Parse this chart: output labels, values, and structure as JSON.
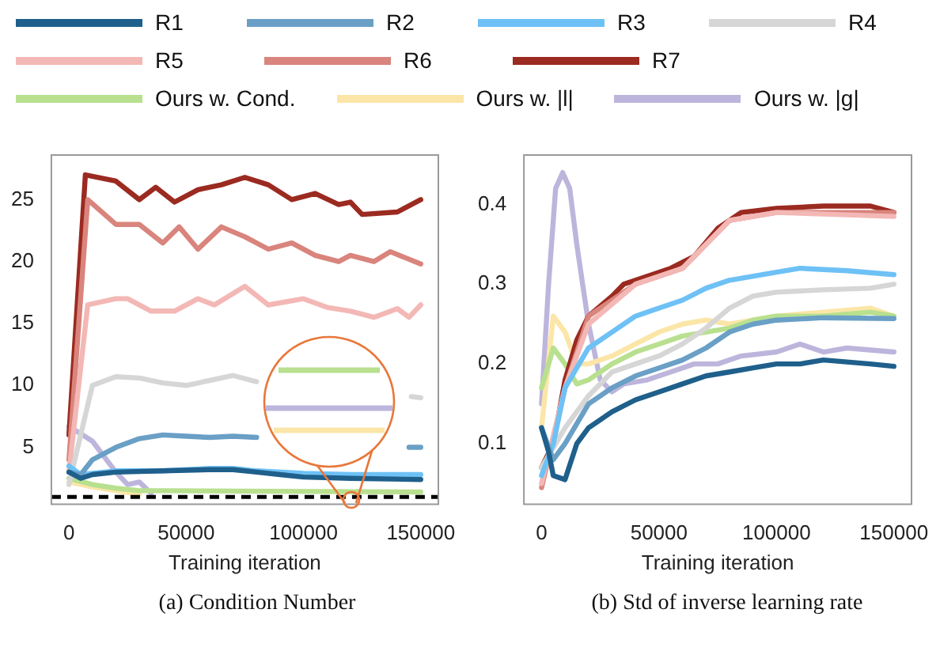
{
  "chart_data": [
    {
      "type": "line",
      "title": "(a) Condition Number",
      "xlabel": "Training iteration",
      "xlim": [
        -7500,
        157500
      ],
      "xticks": [
        0,
        50000,
        100000,
        150000
      ],
      "ylim": [
        0.4,
        28.6
      ],
      "yticks": [
        5,
        10,
        15,
        20,
        25
      ],
      "grid": false,
      "legend": "top",
      "marker": "none",
      "line_style": "solid",
      "ref_lines": [
        {
          "axis": "y",
          "value": 1,
          "color": "#000000",
          "line_style": "dashed"
        }
      ],
      "series": [
        {
          "name": "R1",
          "color": "#1f5f8b",
          "x": [
            0,
            5000,
            10000,
            20000,
            40000,
            60000,
            70000,
            80000,
            90000,
            100000,
            120000,
            150000
          ],
          "values": [
            3,
            2.5,
            2.8,
            3,
            3.1,
            3.2,
            3.2,
            3,
            2.8,
            2.6,
            2.5,
            2.4
          ]
        },
        {
          "name": "R2",
          "color": "#6a9fc6",
          "x": [
            0,
            5000,
            10000,
            20000,
            30000,
            40000,
            50000,
            60000,
            70000,
            80000,
            90000,
            100000,
            110000,
            120000,
            130000,
            145000,
            150000
          ],
          "values": [
            3,
            2.8,
            4,
            5,
            5.7,
            6,
            5.9,
            5.8,
            5.9,
            5.8,
            null,
            null,
            null,
            null,
            null,
            5,
            5
          ]
        },
        {
          "name": "R3",
          "color": "#6ec1f5",
          "x": [
            0,
            5000,
            10000,
            20000,
            40000,
            60000,
            70000,
            80000,
            100000,
            120000,
            150000
          ],
          "values": [
            3.5,
            2.8,
            2.9,
            3.1,
            3.1,
            3.3,
            3.3,
            3.1,
            2.9,
            2.8,
            2.8
          ]
        },
        {
          "name": "R4",
          "color": "#d6d6d6",
          "x": [
            0,
            10000,
            20000,
            30000,
            40000,
            50000,
            60000,
            70000,
            80000,
            90000,
            100000,
            110000,
            120000,
            130000,
            146000,
            150000
          ],
          "values": [
            2,
            10,
            10.7,
            10.6,
            10.2,
            10,
            10.4,
            10.8,
            10.3,
            null,
            null,
            null,
            null,
            null,
            9.1,
            9
          ]
        },
        {
          "name": "R5",
          "color": "#f3b8b5",
          "x": [
            0,
            8000,
            20000,
            25000,
            35000,
            45000,
            55000,
            62000,
            75000,
            85000,
            100000,
            110000,
            120000,
            130000,
            140000,
            145000,
            150000
          ],
          "values": [
            3,
            16.5,
            17,
            17,
            16,
            16,
            17,
            16.5,
            18,
            16.5,
            17,
            16.3,
            16,
            15.5,
            16.2,
            15.5,
            16.5
          ]
        },
        {
          "name": "R6",
          "color": "#d9847c",
          "x": [
            0,
            8000,
            20000,
            30000,
            40000,
            47000,
            55000,
            65000,
            75000,
            85000,
            95000,
            105000,
            115000,
            120000,
            130000,
            137000,
            150000
          ],
          "values": [
            4,
            25,
            23,
            23,
            21.5,
            22.8,
            21,
            22.8,
            22,
            21,
            21.5,
            20.5,
            20,
            20.5,
            20,
            20.8,
            19.8
          ]
        },
        {
          "name": "R7",
          "color": "#9b2a20",
          "x": [
            0,
            7000,
            20000,
            30000,
            37000,
            45000,
            55000,
            65000,
            75000,
            85000,
            95000,
            105000,
            115000,
            120000,
            125000,
            140000,
            150000
          ],
          "values": [
            6,
            27,
            26.5,
            25,
            26,
            24.8,
            25.8,
            26.2,
            26.8,
            26.2,
            25,
            25.5,
            24.6,
            24.8,
            23.8,
            24,
            25
          ]
        },
        {
          "name": "Ours w. Cond.",
          "color": "#b8e08f",
          "x": [
            0,
            10000,
            20000,
            30000,
            40000,
            150000
          ],
          "values": [
            2.5,
            2,
            1.7,
            1.5,
            1.5,
            1.4
          ]
        },
        {
          "name": "Ours w. |l|",
          "color": "#fbe6a8",
          "x": [
            0,
            10000,
            20000,
            30000
          ],
          "values": [
            2.2,
            1.8,
            1.5,
            1.2
          ]
        },
        {
          "name": "Ours w. |g|",
          "color": "#bdb5dc",
          "x": [
            0,
            10000,
            20000,
            25000,
            30000,
            35000
          ],
          "values": [
            6.7,
            5.5,
            3,
            2,
            2.2,
            1.3
          ]
        }
      ]
    },
    {
      "type": "line",
      "title": "(b) Std of inverse learning rate",
      "xlabel": "Training iteration",
      "xlim": [
        -7500,
        157500
      ],
      "xticks": [
        0,
        50000,
        100000,
        150000
      ],
      "ylim": [
        0.024,
        0.462
      ],
      "yticks": [
        0.1,
        0.2,
        0.3,
        0.4
      ],
      "grid": false,
      "marker": "none",
      "line_style": "solid",
      "series": [
        {
          "color": "#1f5f8b",
          "x": [
            0,
            3000,
            5000,
            10000,
            15000,
            20000,
            30000,
            40000,
            50000,
            60000,
            70000,
            80000,
            90000,
            100000,
            110000,
            120000,
            140000,
            150000
          ],
          "values": [
            0.12,
            0.09,
            0.06,
            0.055,
            0.1,
            0.12,
            0.14,
            0.155,
            0.165,
            0.175,
            0.185,
            0.19,
            0.195,
            0.2,
            0.2,
            0.205,
            0.2,
            0.197
          ]
        },
        {
          "color": "#6a9fc6",
          "x": [
            0,
            5000,
            10000,
            20000,
            30000,
            40000,
            50000,
            60000,
            70000,
            80000,
            90000,
            100000,
            120000,
            150000
          ],
          "values": [
            0.12,
            0.08,
            0.1,
            0.15,
            0.17,
            0.185,
            0.195,
            0.205,
            0.22,
            0.24,
            0.25,
            0.255,
            0.258,
            0.257
          ]
        },
        {
          "color": "#6ec1f5",
          "x": [
            0,
            5000,
            10000,
            20000,
            30000,
            40000,
            50000,
            60000,
            70000,
            80000,
            100000,
            110000,
            130000,
            150000
          ],
          "values": [
            0.06,
            0.1,
            0.17,
            0.22,
            0.24,
            0.26,
            0.27,
            0.28,
            0.295,
            0.305,
            0.315,
            0.32,
            0.317,
            0.312
          ]
        },
        {
          "color": "#d6d6d6",
          "x": [
            0,
            10000,
            20000,
            30000,
            40000,
            50000,
            60000,
            70000,
            80000,
            90000,
            100000,
            120000,
            140000,
            150000
          ],
          "values": [
            0.07,
            0.12,
            0.16,
            0.19,
            0.2,
            0.21,
            0.225,
            0.245,
            0.27,
            0.285,
            0.29,
            0.293,
            0.295,
            0.3
          ]
        },
        {
          "color": "#f3b8b5",
          "x": [
            0,
            10000,
            20000,
            30000,
            40000,
            60000,
            70000,
            80000,
            100000,
            120000,
            150000
          ],
          "values": [
            0.05,
            0.17,
            0.25,
            0.275,
            0.3,
            0.32,
            0.35,
            0.38,
            0.39,
            0.388,
            0.385
          ]
        },
        {
          "color": "#d9847c",
          "x": [
            0,
            10000,
            20000,
            30000,
            40000,
            60000,
            70000,
            80000,
            100000,
            150000
          ],
          "values": [
            0.045,
            0.17,
            0.26,
            0.28,
            0.3,
            0.32,
            0.35,
            0.38,
            0.39,
            0.39
          ]
        },
        {
          "color": "#9b2a20",
          "x": [
            0,
            5000,
            10000,
            15000,
            20000,
            30000,
            35000,
            45000,
            55000,
            65000,
            75000,
            85000,
            100000,
            120000,
            140000,
            150000
          ],
          "values": [
            0.07,
            0.1,
            0.18,
            0.23,
            0.26,
            0.285,
            0.3,
            0.31,
            0.32,
            0.335,
            0.37,
            0.39,
            0.395,
            0.398,
            0.398,
            0.39
          ]
        },
        {
          "color": "#b8e08f",
          "x": [
            0,
            5000,
            10000,
            15000,
            20000,
            30000,
            40000,
            50000,
            60000,
            70000,
            80000,
            90000,
            100000,
            120000,
            140000,
            150000
          ],
          "values": [
            0.17,
            0.22,
            0.2,
            0.175,
            0.18,
            0.2,
            0.215,
            0.225,
            0.235,
            0.24,
            0.245,
            0.255,
            0.26,
            0.26,
            0.265,
            0.26
          ]
        },
        {
          "color": "#fbe6a8",
          "x": [
            0,
            5000,
            10000,
            15000,
            20000,
            30000,
            40000,
            50000,
            60000,
            70000,
            80000,
            90000,
            100000,
            120000,
            140000,
            150000
          ],
          "values": [
            0.12,
            0.26,
            0.24,
            0.2,
            0.2,
            0.21,
            0.225,
            0.24,
            0.25,
            0.255,
            0.25,
            0.255,
            0.26,
            0.265,
            0.27,
            0.26
          ]
        },
        {
          "color": "#bdb5dc",
          "x": [
            0,
            3000,
            6000,
            9000,
            12000,
            15000,
            20000,
            25000,
            30000,
            35000,
            45000,
            55000,
            65000,
            75000,
            85000,
            100000,
            110000,
            120000,
            130000,
            150000
          ],
          "values": [
            0.15,
            0.3,
            0.42,
            0.44,
            0.42,
            0.35,
            0.25,
            0.18,
            0.165,
            0.175,
            0.18,
            0.19,
            0.2,
            0.2,
            0.21,
            0.215,
            0.225,
            0.215,
            0.22,
            0.215
          ]
        }
      ]
    }
  ]
}
